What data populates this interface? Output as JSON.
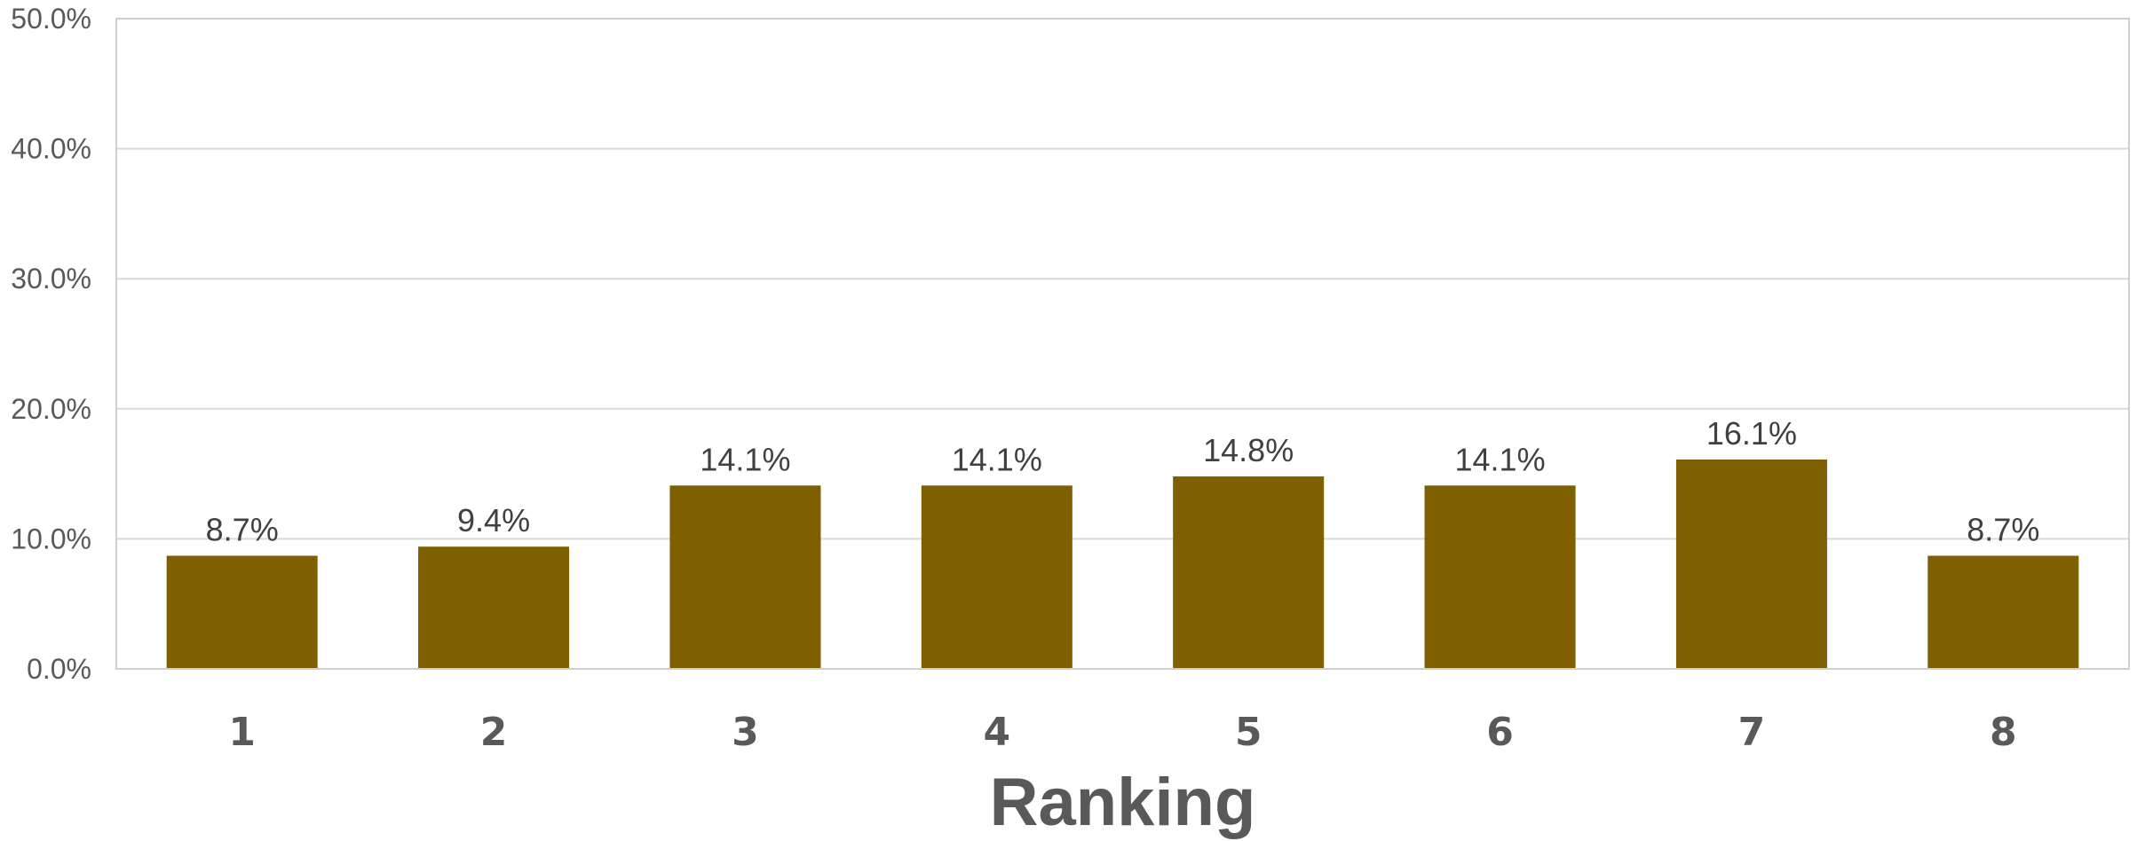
{
  "chart_data": {
    "type": "bar",
    "categories": [
      "1",
      "2",
      "3",
      "4",
      "5",
      "6",
      "7",
      "8"
    ],
    "values": [
      8.7,
      9.4,
      14.1,
      14.1,
      14.8,
      14.1,
      16.1,
      8.7
    ],
    "data_labels": [
      "8.7%",
      "9.4%",
      "14.1%",
      "14.1%",
      "14.8%",
      "14.1%",
      "16.1%",
      "8.7%"
    ],
    "title": "",
    "xlabel": "Ranking",
    "ylabel": "",
    "ylim": [
      0,
      50
    ],
    "yticks": [
      0,
      10,
      20,
      30,
      40,
      50
    ],
    "ytick_labels": [
      "0.0%",
      "10.0%",
      "20.0%",
      "30.0%",
      "40.0%",
      "50.0%"
    ],
    "grid": true,
    "legend": "none",
    "bar_color": "#7f6000"
  }
}
